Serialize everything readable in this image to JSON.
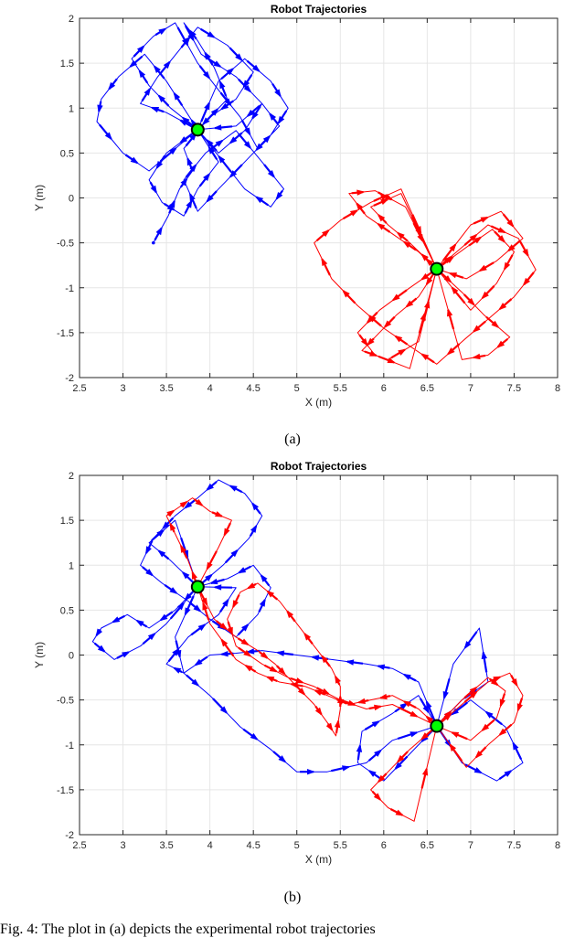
{
  "figure": {
    "caption_a": "(a)",
    "caption_b": "(b)",
    "footer_text": "Fig. 4: The plot in (a) depicts the experimental robot trajectories"
  },
  "colors": {
    "robot1": "#0000ff",
    "robot2": "#ff0000",
    "goal_fill": "#00ff00",
    "goal_edge": "#000000",
    "grid": "#e6e6e6"
  },
  "chart_data": [
    {
      "type": "line",
      "title": "Robot Trajectories",
      "xlabel": "X (m)",
      "ylabel": "Y (m)",
      "xlim": [
        2.5,
        8
      ],
      "ylim": [
        -2,
        2
      ],
      "xticks": [
        2.5,
        3,
        3.5,
        4,
        4.5,
        5,
        5.5,
        6,
        6.5,
        7,
        7.5,
        8
      ],
      "yticks": [
        -2,
        -1.5,
        -1,
        -0.5,
        0,
        0.5,
        1,
        1.5,
        2
      ],
      "xtick_labels": [
        "2.5",
        "3",
        "3.5",
        "4",
        "4.5",
        "5",
        "5.5",
        "6",
        "6.5",
        "7",
        "7.5",
        "8"
      ],
      "ytick_labels": [
        "-2",
        "-1.5",
        "-1",
        "-0.5",
        "0",
        "0.5",
        "1",
        "1.5",
        "2"
      ],
      "grid": true,
      "goals": [
        {
          "x": 3.86,
          "y": 0.76
        },
        {
          "x": 6.61,
          "y": -0.79
        }
      ],
      "series": [
        {
          "color": "blue",
          "x": [
            3.35,
            3.52,
            3.65,
            3.8,
            3.7,
            3.95,
            4.2,
            4.05,
            3.86,
            3.7,
            3.9,
            4.3,
            4.6,
            4.4,
            4.1,
            3.86,
            3.55,
            3.3,
            3.1,
            3.35,
            3.6,
            3.86,
            4.1,
            4.35,
            4.55,
            4.8,
            4.6,
            4.3,
            3.86,
            3.5,
            3.3,
            3.45,
            3.7,
            3.86,
            4.1,
            3.9,
            3.7,
            3.5,
            3.25,
            2.95,
            2.75,
            2.7,
            3.0,
            3.3,
            3.86,
            4.1,
            4.4,
            4.7,
            4.9,
            4.7,
            4.4,
            4.1,
            3.86,
            3.7,
            3.95,
            4.3,
            4.6,
            4.85,
            4.7,
            4.4,
            3.86,
            3.5,
            3.2,
            3.4,
            3.65,
            3.86,
            4.2,
            4.5,
            4.3,
            4.0,
            3.86
          ],
          "y": [
            -0.5,
            -0.2,
            0.1,
            0.3,
            0.55,
            0.85,
            1.1,
            1.45,
            1.75,
            1.95,
            1.6,
            1.35,
            1.05,
            0.75,
            0.5,
            0.76,
            1.0,
            1.25,
            1.55,
            1.8,
            1.95,
            1.5,
            1.2,
            0.9,
            0.55,
            0.8,
            1.05,
            0.8,
            0.76,
            0.5,
            0.2,
            -0.05,
            -0.2,
            0.1,
            0.4,
            0.7,
            1.0,
            1.3,
            1.6,
            1.35,
            1.1,
            0.85,
            0.5,
            0.3,
            0.76,
            1.3,
            1.55,
            1.3,
            1.0,
            0.7,
            0.4,
            0.1,
            -0.15,
            0.2,
            0.5,
            0.75,
            0.4,
            0.1,
            -0.1,
            0.1,
            0.76,
            0.95,
            1.05,
            1.35,
            1.65,
            1.9,
            1.7,
            1.4,
            1.1,
            0.9,
            0.76
          ]
        },
        {
          "color": "red",
          "x": [
            6.61,
            6.9,
            7.2,
            7.55,
            7.75,
            7.5,
            7.2,
            6.9,
            6.61,
            6.3,
            6.0,
            5.7,
            5.4,
            5.2,
            5.5,
            5.85,
            6.2,
            6.61,
            6.4,
            6.1,
            5.8,
            5.6,
            5.9,
            6.25,
            6.61,
            7.0,
            7.35,
            7.6,
            7.3,
            6.95,
            6.61,
            6.4,
            6.15,
            5.9,
            5.75,
            6.05,
            6.4,
            6.61,
            6.9,
            7.15,
            7.45,
            7.2,
            6.9,
            6.61,
            6.3,
            6.05,
            5.85,
            6.2,
            6.61,
            6.95,
            7.25,
            7.5,
            7.3,
            7.0,
            6.61,
            6.3,
            5.95,
            5.7,
            5.9,
            6.3,
            6.61
          ],
          "y": [
            -0.79,
            -0.55,
            -0.3,
            -0.45,
            -0.8,
            -1.1,
            -1.35,
            -1.6,
            -1.85,
            -1.65,
            -1.45,
            -1.2,
            -0.9,
            -0.5,
            -0.25,
            -0.05,
            0.1,
            -0.79,
            -0.6,
            -0.4,
            -0.2,
            0.05,
            0.08,
            -0.1,
            -0.79,
            -0.3,
            -0.15,
            -0.45,
            -0.7,
            -0.9,
            -0.79,
            -1.1,
            -1.3,
            -1.55,
            -1.7,
            -1.8,
            -1.6,
            -0.79,
            -1.05,
            -1.3,
            -1.55,
            -1.75,
            -1.8,
            -0.79,
            -0.5,
            -0.3,
            -0.1,
            0.05,
            -0.79,
            -0.55,
            -0.35,
            -0.6,
            -0.95,
            -1.25,
            -0.79,
            -1.0,
            -1.25,
            -1.5,
            -1.75,
            -1.9,
            -0.79
          ]
        }
      ]
    },
    {
      "type": "line",
      "title": "Robot Trajectories",
      "xlabel": "X (m)",
      "ylabel": "Y (m)",
      "xlim": [
        2.5,
        8
      ],
      "ylim": [
        -2,
        2
      ],
      "xticks": [
        2.5,
        3,
        3.5,
        4,
        4.5,
        5,
        5.5,
        6,
        6.5,
        7,
        7.5,
        8
      ],
      "yticks": [
        -2,
        -1.5,
        -1,
        -0.5,
        0,
        0.5,
        1,
        1.5,
        2
      ],
      "xtick_labels": [
        "2.5",
        "3",
        "3.5",
        "4",
        "4.5",
        "5",
        "5.5",
        "6",
        "6.5",
        "7",
        "7.5",
        "8"
      ],
      "ytick_labels": [
        "-2",
        "-1.5",
        "-1",
        "-0.5",
        "0",
        "0.5",
        "1",
        "1.5",
        "2"
      ],
      "grid": true,
      "goals": [
        {
          "x": 3.86,
          "y": 0.76
        },
        {
          "x": 6.61,
          "y": -0.79
        }
      ],
      "series": [
        {
          "color": "blue",
          "x": [
            3.86,
            3.6,
            3.3,
            3.05,
            2.75,
            2.65,
            2.9,
            3.2,
            3.5,
            3.86,
            4.15,
            4.45,
            4.6,
            4.4,
            4.1,
            3.86,
            3.6,
            3.35,
            3.2,
            3.45,
            3.75,
            4.0,
            4.3,
            4.55,
            4.7,
            4.5,
            4.2,
            3.86,
            3.6,
            3.7,
            4.0,
            4.35,
            4.7,
            5.0,
            5.35,
            5.8,
            6.1,
            6.61,
            6.9,
            7.2,
            7.1,
            6.8,
            6.61,
            6.3,
            6.0,
            5.7,
            5.75,
            6.1,
            6.4,
            6.61,
            6.9,
            7.3,
            7.6,
            7.4,
            7.0,
            6.61,
            6.4,
            6.1,
            5.8,
            5.4,
            5.0,
            4.6,
            4.3,
            4.0,
            3.7,
            3.5,
            3.75,
            4.1,
            4.3,
            3.86,
            3.55,
            3.3,
            3.6,
            3.86
          ],
          "y": [
            0.76,
            0.5,
            0.3,
            0.45,
            0.3,
            0.15,
            -0.05,
            0.1,
            0.35,
            0.76,
            1.0,
            1.3,
            1.55,
            1.8,
            1.95,
            1.75,
            1.55,
            1.3,
            1.0,
            0.8,
            0.6,
            0.4,
            0.2,
            0.45,
            0.75,
            1.0,
            0.85,
            0.76,
            0.2,
            -0.2,
            -0.45,
            -0.8,
            -1.05,
            -1.3,
            -1.3,
            -1.2,
            -0.95,
            -0.79,
            -0.5,
            -0.3,
            0.3,
            -0.1,
            -0.79,
            -1.1,
            -1.4,
            -1.2,
            -0.85,
            -0.65,
            -0.45,
            -0.79,
            -1.2,
            -1.4,
            -1.2,
            -0.8,
            -0.5,
            -0.79,
            -0.3,
            -0.15,
            -0.1,
            -0.05,
            0.0,
            0.05,
            0.02,
            0.0,
            -0.2,
            -0.1,
            0.2,
            0.45,
            0.75,
            0.76,
            1.05,
            1.25,
            1.5,
            0.76
          ]
        },
        {
          "color": "red",
          "x": [
            3.86,
            3.75,
            3.6,
            3.5,
            3.65,
            3.8,
            4.0,
            4.25,
            4.1,
            3.86,
            4.05,
            4.3,
            4.55,
            4.75,
            4.95,
            5.2,
            5.35,
            5.45,
            5.5,
            5.5,
            5.4,
            5.2,
            5.0,
            4.8,
            4.55,
            4.35,
            4.2,
            4.3,
            4.6,
            4.9,
            5.2,
            5.5,
            5.8,
            6.1,
            6.61,
            6.9,
            7.2,
            7.45,
            7.6,
            7.5,
            7.2,
            6.95,
            6.61,
            6.3,
            6.05,
            5.85,
            6.05,
            6.35,
            6.61,
            6.9,
            7.2,
            7.4,
            7.3,
            7.0,
            6.61,
            6.4,
            6.1,
            5.85,
            5.6,
            5.35,
            5.1,
            4.8,
            4.55,
            4.3,
            4.0,
            3.86
          ],
          "y": [
            0.76,
            1.05,
            1.35,
            1.55,
            1.65,
            1.75,
            1.6,
            1.5,
            1.2,
            0.76,
            0.4,
            0.2,
            0.05,
            -0.1,
            -0.3,
            -0.55,
            -0.75,
            -0.9,
            -0.6,
            -0.35,
            -0.15,
            0.1,
            0.35,
            0.6,
            0.8,
            0.7,
            0.4,
            0.1,
            -0.1,
            -0.25,
            -0.35,
            -0.5,
            -0.6,
            -0.55,
            -0.79,
            -0.55,
            -0.3,
            -0.2,
            -0.45,
            -0.75,
            -1.0,
            -1.25,
            -0.79,
            -1.05,
            -1.3,
            -1.5,
            -1.7,
            -1.85,
            -0.79,
            -0.5,
            -0.25,
            -0.4,
            -0.7,
            -0.95,
            -0.79,
            -0.6,
            -0.45,
            -0.5,
            -0.55,
            -0.45,
            -0.35,
            -0.3,
            -0.2,
            -0.05,
            0.35,
            0.76
          ]
        }
      ]
    }
  ]
}
